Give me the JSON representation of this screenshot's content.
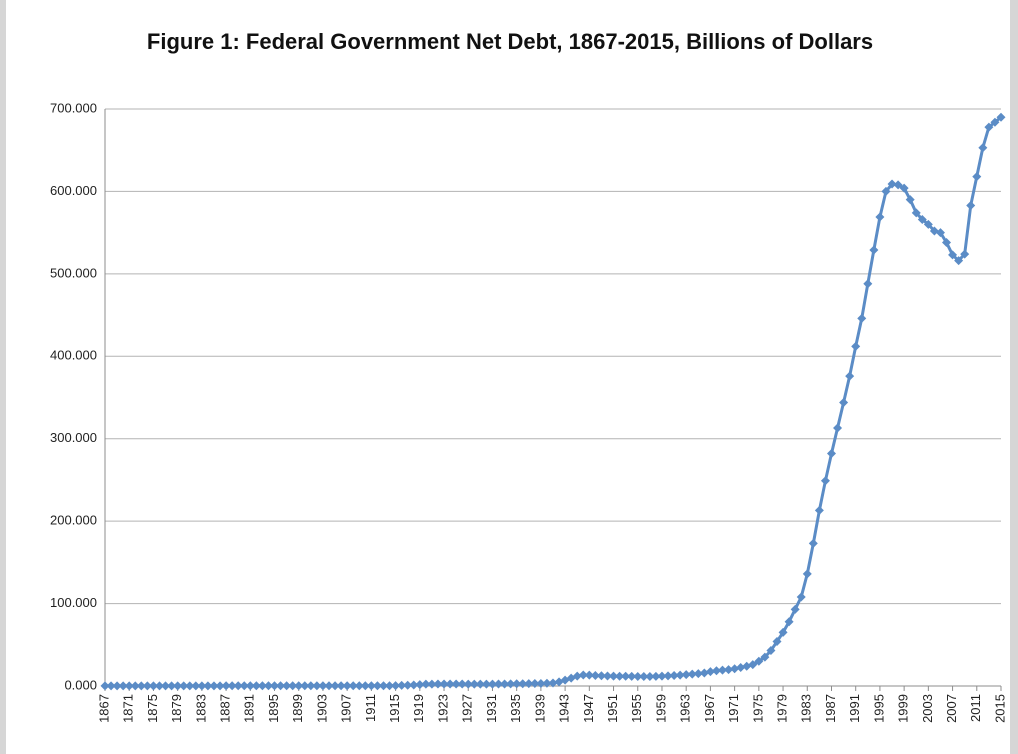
{
  "chart_data": {
    "type": "line",
    "title": "Figure 1: Federal Government Net Debt, 1867-2015, Billions of Dollars",
    "color": "#5b8cc6",
    "marker": "diamond",
    "grid": true,
    "x": [
      1867,
      1868,
      1869,
      1870,
      1871,
      1872,
      1873,
      1874,
      1875,
      1876,
      1877,
      1878,
      1879,
      1880,
      1881,
      1882,
      1883,
      1884,
      1885,
      1886,
      1887,
      1888,
      1889,
      1890,
      1891,
      1892,
      1893,
      1894,
      1895,
      1896,
      1897,
      1898,
      1899,
      1900,
      1901,
      1902,
      1903,
      1904,
      1905,
      1906,
      1907,
      1908,
      1909,
      1910,
      1911,
      1912,
      1913,
      1914,
      1915,
      1916,
      1917,
      1918,
      1919,
      1920,
      1921,
      1922,
      1923,
      1924,
      1925,
      1926,
      1927,
      1928,
      1929,
      1930,
      1931,
      1932,
      1933,
      1934,
      1935,
      1936,
      1937,
      1938,
      1939,
      1940,
      1941,
      1942,
      1943,
      1944,
      1945,
      1946,
      1947,
      1948,
      1949,
      1950,
      1951,
      1952,
      1953,
      1954,
      1955,
      1956,
      1957,
      1958,
      1959,
      1960,
      1961,
      1962,
      1963,
      1964,
      1965,
      1966,
      1967,
      1968,
      1969,
      1970,
      1971,
      1972,
      1973,
      1974,
      1975,
      1976,
      1977,
      1978,
      1979,
      1980,
      1981,
      1982,
      1983,
      1984,
      1985,
      1986,
      1987,
      1988,
      1989,
      1990,
      1991,
      1992,
      1993,
      1994,
      1995,
      1996,
      1997,
      1998,
      1999,
      2000,
      2001,
      2002,
      2003,
      2004,
      2005,
      2006,
      2007,
      2008,
      2009,
      2010,
      2011,
      2012,
      2013,
      2014,
      2015
    ],
    "values": [
      0.08,
      0.09,
      0.1,
      0.1,
      0.12,
      0.12,
      0.13,
      0.14,
      0.15,
      0.16,
      0.17,
      0.17,
      0.18,
      0.19,
      0.2,
      0.2,
      0.2,
      0.21,
      0.22,
      0.22,
      0.23,
      0.23,
      0.24,
      0.24,
      0.24,
      0.24,
      0.24,
      0.25,
      0.25,
      0.26,
      0.26,
      0.26,
      0.26,
      0.27,
      0.27,
      0.27,
      0.27,
      0.27,
      0.27,
      0.27,
      0.28,
      0.28,
      0.28,
      0.29,
      0.3,
      0.3,
      0.31,
      0.34,
      0.45,
      0.7,
      0.9,
      1.2,
      1.6,
      2.2,
      2.3,
      2.4,
      2.4,
      2.4,
      2.4,
      2.4,
      2.3,
      2.3,
      2.2,
      2.2,
      2.3,
      2.4,
      2.5,
      2.6,
      2.7,
      2.8,
      2.9,
      3.0,
      3.1,
      3.3,
      3.6,
      5.0,
      7.1,
      9.5,
      12.0,
      13.4,
      13.2,
      12.8,
      12.5,
      12.2,
      12.0,
      11.9,
      11.8,
      11.7,
      11.6,
      11.5,
      11.5,
      11.7,
      12.0,
      12.3,
      12.7,
      13.2,
      13.8,
      14.4,
      15.0,
      15.8,
      17.5,
      18.5,
      19.2,
      19.8,
      21.0,
      22.5,
      24.0,
      26.0,
      30.0,
      35.0,
      43,
      54,
      65,
      78,
      93,
      108,
      136,
      173,
      213,
      249,
      282,
      313,
      344,
      376,
      412,
      446,
      488,
      529,
      569,
      600,
      609,
      608,
      604,
      590,
      574,
      566,
      560,
      552,
      550,
      538,
      523,
      516,
      524,
      583,
      618,
      653,
      678,
      684,
      690
    ],
    "xlim": [
      1867,
      2015
    ],
    "xticks": [
      1867,
      1871,
      1875,
      1879,
      1883,
      1887,
      1891,
      1895,
      1899,
      1903,
      1907,
      1911,
      1915,
      1919,
      1923,
      1927,
      1931,
      1935,
      1939,
      1943,
      1947,
      1951,
      1955,
      1959,
      1963,
      1967,
      1971,
      1975,
      1979,
      1983,
      1987,
      1991,
      1995,
      1999,
      2003,
      2007,
      2011,
      2015
    ],
    "ylim": [
      0,
      700
    ],
    "yticks": [
      {
        "value": 0,
        "label": "0.000"
      },
      {
        "value": 100,
        "label": "100.000"
      },
      {
        "value": 200,
        "label": "200.000"
      },
      {
        "value": 300,
        "label": "300.000"
      },
      {
        "value": 400,
        "label": "400.000"
      },
      {
        "value": 500,
        "label": "500.000"
      },
      {
        "value": 600,
        "label": "600.000"
      },
      {
        "value": 700,
        "label": "700.000"
      }
    ]
  }
}
